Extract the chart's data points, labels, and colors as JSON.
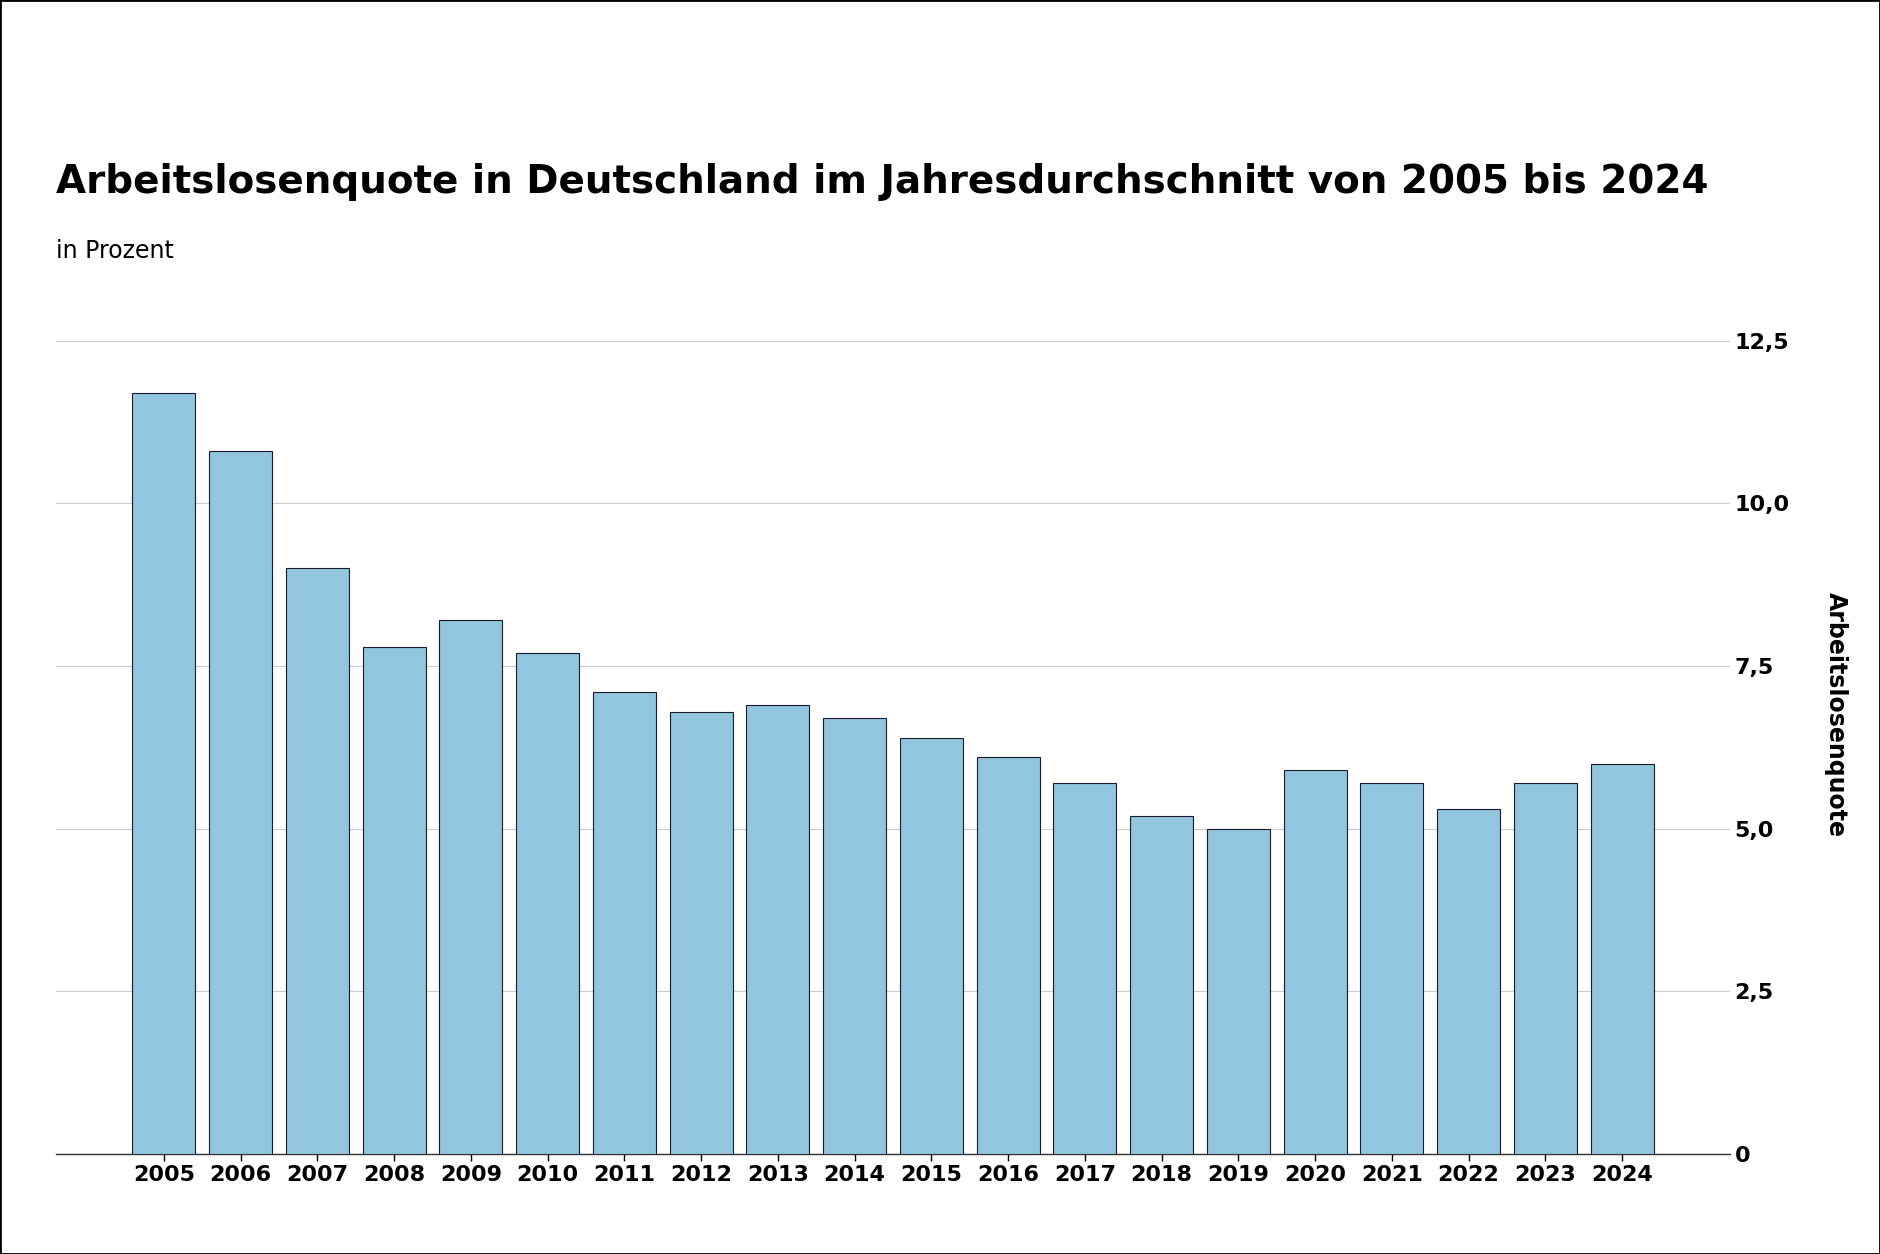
{
  "title": "Arbeitslosenquote in Deutschland im Jahresdurchschnitt von 2005 bis 2024",
  "subtitle": "in Prozent",
  "ylabel": "Arbeitslosenquote",
  "years": [
    2005,
    2006,
    2007,
    2008,
    2009,
    2010,
    2011,
    2012,
    2013,
    2014,
    2015,
    2016,
    2017,
    2018,
    2019,
    2020,
    2021,
    2022,
    2023,
    2024
  ],
  "unemployment": [
    11.7,
    10.8,
    9.0,
    7.8,
    8.2,
    7.7,
    7.1,
    6.8,
    6.9,
    6.7,
    6.4,
    6.1,
    5.7,
    5.2,
    5.0,
    5.9,
    5.7,
    5.3,
    5.7,
    6.0
  ],
  "bar_color": "#92c5de",
  "bar_edgecolor": "#1a1a2e",
  "background_color": "#ffffff",
  "ylim": [
    0,
    13.5
  ],
  "yticks": [
    0,
    2.5,
    5.0,
    7.5,
    10.0,
    12.5
  ],
  "ytick_labels": [
    "0",
    "2,5",
    "5,0",
    "7,5",
    "10,0",
    "12,5"
  ],
  "title_fontsize": 28,
  "subtitle_fontsize": 17,
  "ylabel_fontsize": 17,
  "tick_fontsize": 16,
  "bar_width": 0.82
}
